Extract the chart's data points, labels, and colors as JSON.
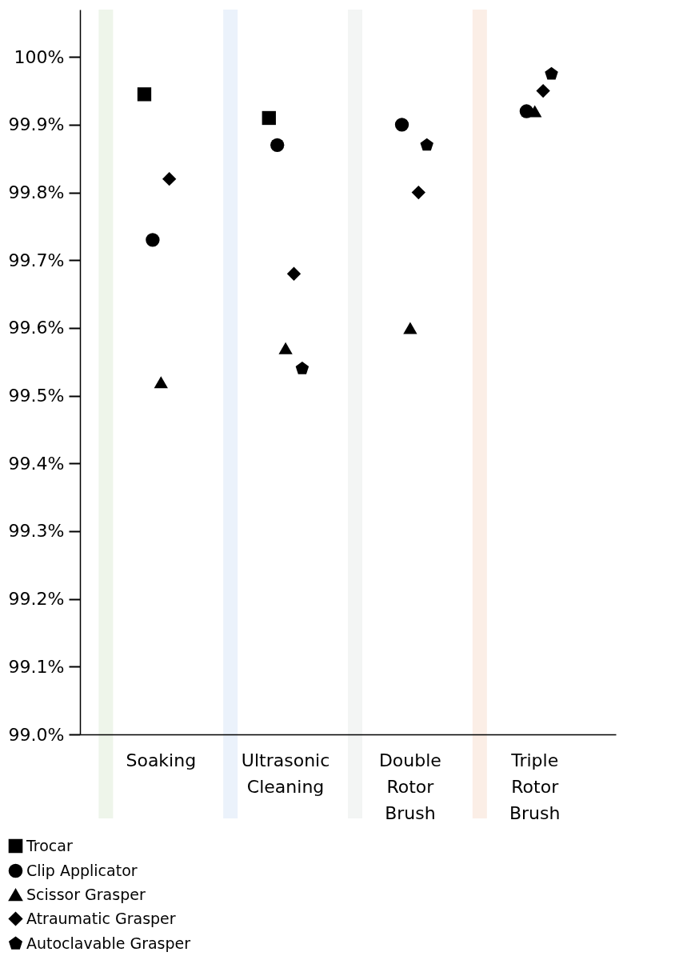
{
  "chart_data": {
    "type": "scatter",
    "categories": [
      "Soaking",
      "Ultrasonic Cleaning",
      "Double Rotor Brush",
      "Triple Rotor Brush"
    ],
    "series": [
      {
        "name": "Trocar",
        "color": "#000000",
        "marker": "square",
        "values": [
          99.945,
          99.91,
          null,
          null
        ]
      },
      {
        "name": "Clip Applicator",
        "color": "#000000",
        "marker": "circle",
        "values": [
          99.73,
          99.87,
          99.9,
          99.92
        ]
      },
      {
        "name": "Scissor Grasper",
        "color": "#000000",
        "marker": "triangle",
        "values": [
          99.52,
          99.57,
          99.6,
          99.92
        ]
      },
      {
        "name": "Atraumatic Grasper",
        "color": "#000000",
        "marker": "diamond",
        "values": [
          99.82,
          99.68,
          99.8,
          99.95
        ]
      },
      {
        "name": "Autoclavable Grasper",
        "color": "#000000",
        "values": [
          null,
          99.54,
          99.87,
          99.975
        ]
      }
    ],
    "ylim": [
      99.0,
      100.07
    ],
    "yticks": [
      {
        "value": 99.0,
        "label": "99.0%"
      },
      {
        "value": 99.1,
        "label": "99.1%"
      },
      {
        "value": 99.2,
        "label": "99.2%"
      },
      {
        "value": 99.3,
        "label": "99.3%"
      },
      {
        "value": 99.4,
        "label": "99.4%"
      },
      {
        "value": 99.5,
        "label": "99.5%"
      },
      {
        "value": 99.6,
        "label": "99.6%"
      },
      {
        "value": 99.7,
        "label": "99.7%"
      },
      {
        "value": 99.8,
        "label": "99.8%"
      },
      {
        "value": 99.9,
        "label": "99.9%"
      },
      {
        "value": 100,
        "label": "100%"
      }
    ],
    "bands": [
      {
        "axis": "x",
        "from": "Soaking",
        "to": "Soaking",
        "color": "#eef5ea"
      },
      {
        "axis": "x",
        "from": "Ultrasonic Cleaning",
        "to": "Ultrasonic Cleaning",
        "color": "#ebf2fb"
      },
      {
        "axis": "x",
        "from": "Double Rotor Brush",
        "to": "Double Rotor Brush",
        "color": "#f3f5f4"
      },
      {
        "axis": "x",
        "from": "Triple Rotor Brush",
        "to": "Triple Rotor Brush",
        "color": "#fbeee6"
      }
    ],
    "grid": false,
    "legend": "bottom left"
  }
}
